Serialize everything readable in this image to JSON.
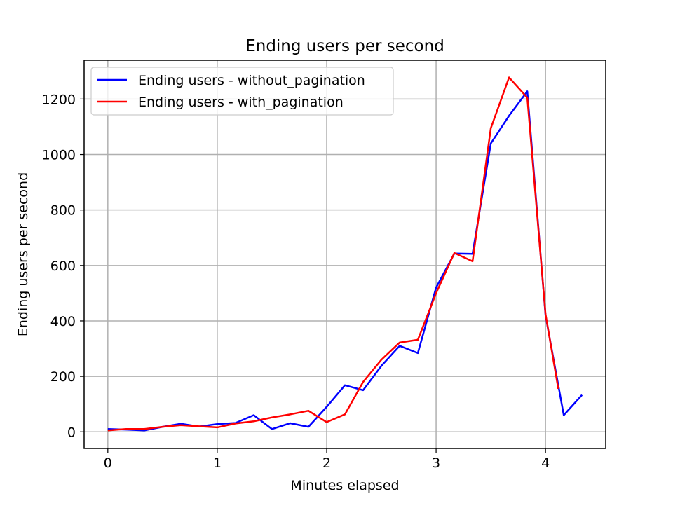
{
  "chart_data": {
    "type": "line",
    "title": "Ending users per second",
    "xlabel": "Minutes elapsed",
    "ylabel": "Ending users per second",
    "xlim": [
      -0.2167,
      4.55
    ],
    "ylim": [
      -60,
      1340
    ],
    "xticks": [
      "0",
      "1",
      "2",
      "3",
      "4"
    ],
    "yticks": [
      "0",
      "200",
      "400",
      "600",
      "800",
      "1000",
      "1200"
    ],
    "grid": true,
    "legend_position": "top-left",
    "series": [
      {
        "name": "Ending users - without_pagination",
        "color": "#0000ff",
        "x": [
          0,
          0.1667,
          0.3333,
          0.5,
          0.6667,
          0.8333,
          1.0,
          1.1667,
          1.3333,
          1.5,
          1.6667,
          1.8333,
          2.0,
          2.1667,
          2.3333,
          2.5,
          2.6667,
          2.8333,
          3.0,
          3.1667,
          3.3333,
          3.5,
          3.6667,
          3.8333,
          4.0,
          4.1667,
          4.3333
        ],
        "y": [
          10,
          8,
          5,
          18,
          29,
          19,
          28,
          32,
          60,
          10,
          31,
          18,
          90,
          168,
          150,
          238,
          310,
          284,
          520,
          643,
          642,
          1040,
          1140,
          1228,
          420,
          60,
          133
        ]
      },
      {
        "name": "Ending users - with_pagination",
        "color": "#ff0000",
        "x": [
          0,
          0.1667,
          0.3333,
          0.5,
          0.6667,
          0.8333,
          1.0,
          1.1667,
          1.3333,
          1.5,
          1.6667,
          1.8333,
          2.0,
          2.1667,
          2.3333,
          2.5,
          2.6667,
          2.8333,
          3.0,
          3.1667,
          3.3333,
          3.5,
          3.6667,
          3.8333,
          4.0,
          4.1167
        ],
        "y": [
          5,
          10,
          10,
          18,
          24,
          20,
          16,
          30,
          38,
          52,
          63,
          76,
          35,
          63,
          180,
          260,
          322,
          332,
          500,
          645,
          615,
          1095,
          1278,
          1205,
          425,
          155
        ]
      }
    ]
  }
}
